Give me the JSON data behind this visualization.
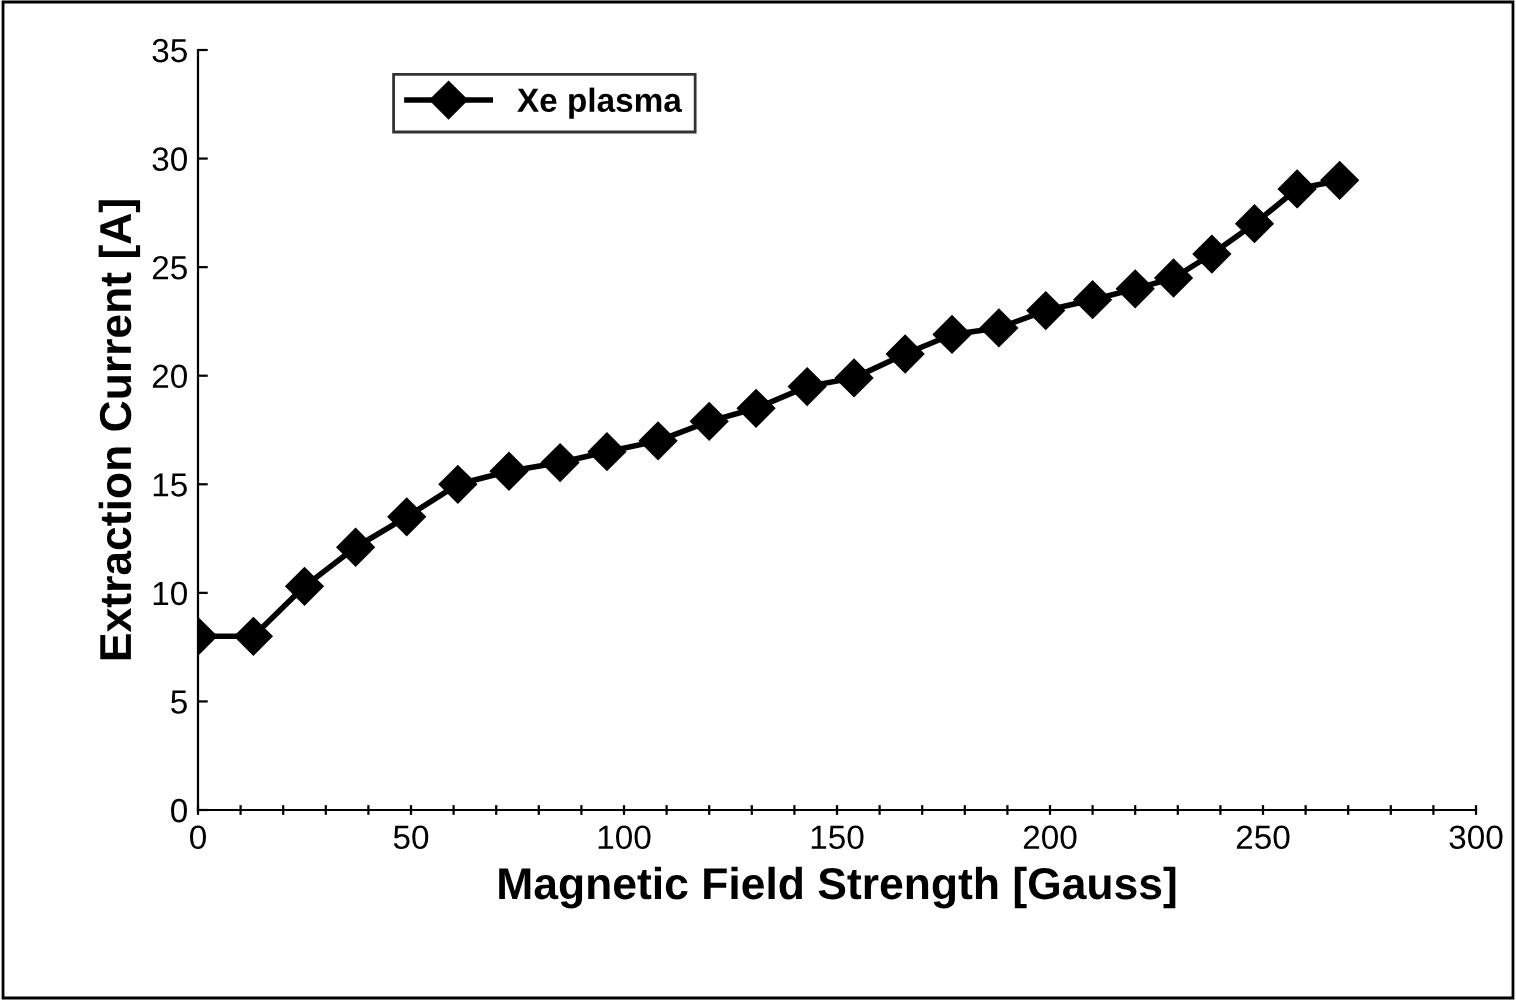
{
  "chart_data": {
    "type": "line",
    "xlabel": "Magnetic Field Strength [Gauss]",
    "ylabel": "Extraction Current [A]",
    "x": [
      0,
      13,
      25,
      37,
      49,
      61,
      73,
      85,
      96,
      108,
      120,
      131,
      143,
      154,
      166,
      177,
      188,
      199,
      210,
      220,
      229,
      238,
      248,
      258,
      268
    ],
    "series": [
      {
        "name": "Xe plasma",
        "color": "#000000",
        "values": [
          8,
          8,
          10.3,
          12.1,
          13.5,
          15,
          15.6,
          16,
          16.5,
          17,
          17.9,
          18.5,
          19.5,
          19.9,
          21,
          21.9,
          22.2,
          23,
          23.5,
          24,
          24.5,
          25.6,
          27,
          28.6,
          29
        ]
      }
    ],
    "xlim": [
      0,
      300
    ],
    "ylim": [
      0,
      35
    ],
    "xticks": [
      0,
      {
        "value": 10,
        "label": null
      },
      {
        "value": 20,
        "label": null
      },
      {
        "value": 30,
        "label": null
      },
      {
        "value": 40,
        "label": null
      },
      50,
      {
        "value": 60,
        "label": null
      },
      {
        "value": 70,
        "label": null
      },
      {
        "value": 80,
        "label": null
      },
      {
        "value": 90,
        "label": null
      },
      100,
      {
        "value": 110,
        "label": null
      },
      {
        "value": 120,
        "label": null
      },
      {
        "value": 130,
        "label": null
      },
      {
        "value": 140,
        "label": null
      },
      150,
      {
        "value": 160,
        "label": null
      },
      {
        "value": 170,
        "label": null
      },
      {
        "value": 180,
        "label": null
      },
      {
        "value": 190,
        "label": null
      },
      200,
      {
        "value": 210,
        "label": null
      },
      {
        "value": 220,
        "label": null
      },
      {
        "value": 230,
        "label": null
      },
      {
        "value": 240,
        "label": null
      },
      250,
      {
        "value": 260,
        "label": null
      },
      {
        "value": 270,
        "label": null
      },
      {
        "value": 280,
        "label": null
      },
      {
        "value": 290,
        "label": null
      },
      300
    ],
    "yticks": [
      0,
      5,
      10,
      15,
      20,
      25,
      30,
      35
    ],
    "grid": false,
    "legend": "top left",
    "marker": "diamond",
    "line_style": "solid"
  }
}
